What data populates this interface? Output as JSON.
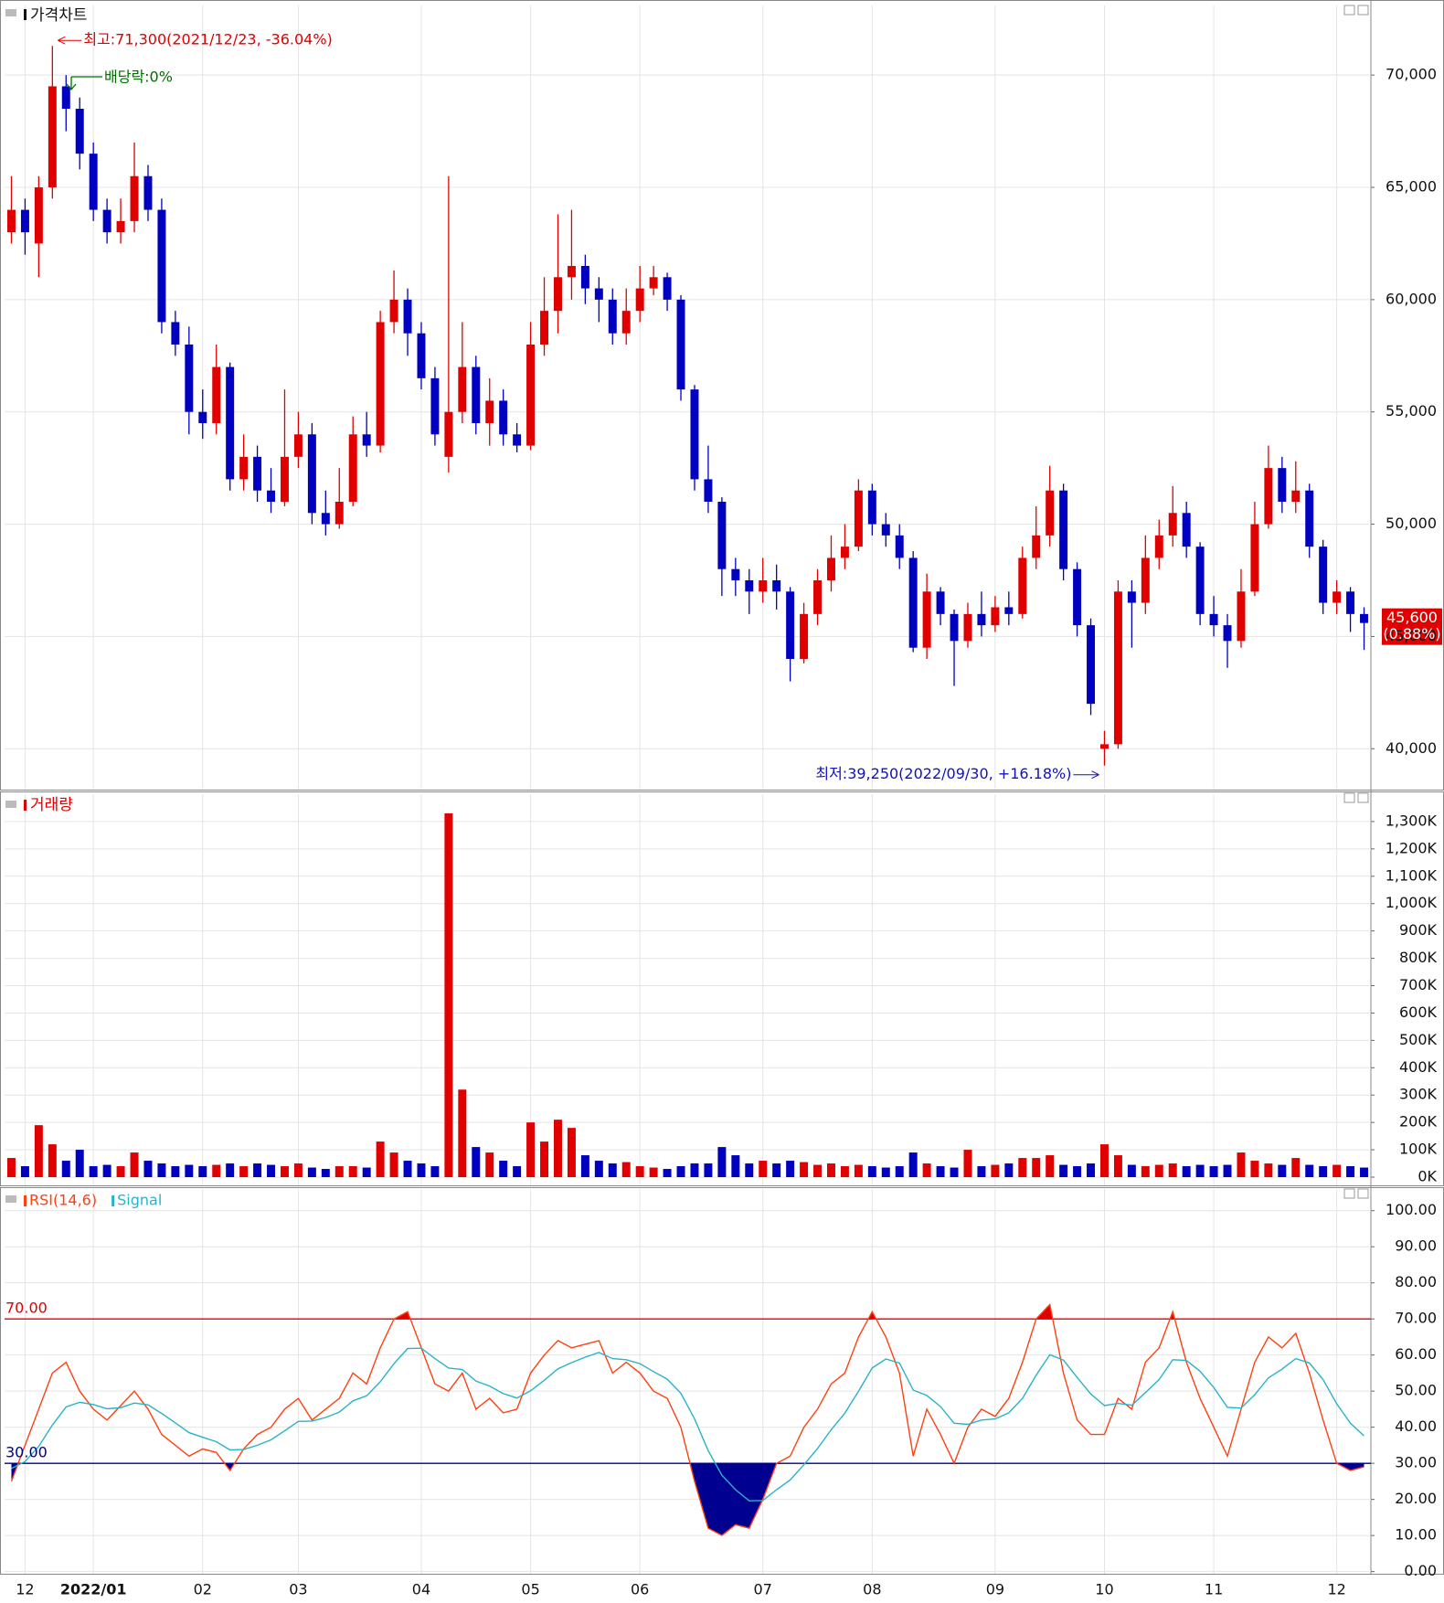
{
  "chart_data": [
    {
      "type": "candlestick",
      "title": "가격차트",
      "categories": [
        null,
        "12",
        null,
        null,
        null,
        null,
        "2022/01",
        null,
        null,
        null,
        null,
        null,
        null,
        null,
        "02",
        null,
        null,
        null,
        null,
        null,
        null,
        "03",
        null,
        null,
        null,
        null,
        null,
        null,
        null,
        null,
        "04",
        null,
        null,
        null,
        null,
        null,
        null,
        null,
        "05",
        null,
        null,
        null,
        null,
        null,
        null,
        null,
        "06",
        null,
        null,
        null,
        null,
        null,
        null,
        null,
        null,
        "07",
        null,
        null,
        null,
        null,
        null,
        null,
        null,
        "08",
        null,
        null,
        null,
        null,
        null,
        null,
        null,
        null,
        "09",
        null,
        null,
        null,
        null,
        null,
        null,
        null,
        "10",
        null,
        null,
        null,
        null,
        null,
        null,
        null,
        "11",
        null,
        null,
        null,
        null,
        null,
        null,
        null,
        null,
        "12",
        null,
        null
      ],
      "open": [
        63000,
        64000,
        62500,
        65000,
        69500,
        68500,
        66500,
        64000,
        63000,
        63500,
        65500,
        64000,
        59000,
        58000,
        55000,
        54500,
        57000,
        52000,
        53000,
        51500,
        51000,
        53000,
        54000,
        50500,
        50000,
        51000,
        54000,
        53500,
        59000,
        60000,
        58500,
        56500,
        53000,
        55000,
        57000,
        54500,
        55500,
        54000,
        53500,
        58000,
        59500,
        61000,
        61500,
        60500,
        60000,
        58500,
        59500,
        60500,
        61000,
        60000,
        56000,
        52000,
        51000,
        48000,
        47500,
        47000,
        47500,
        47000,
        44000,
        46000,
        47500,
        48500,
        49000,
        51500,
        50000,
        49500,
        48500,
        44500,
        47000,
        46000,
        44800,
        46000,
        45500,
        46300,
        46000,
        48500,
        49500,
        51500,
        48000,
        45500,
        40000,
        40200,
        47000,
        46500,
        48500,
        49500,
        50500,
        49000,
        46000,
        45500,
        44800,
        47000,
        50000,
        52500,
        51000,
        51500,
        49000,
        46500,
        47000,
        46000
      ],
      "high": [
        65500,
        64500,
        65500,
        71300,
        70000,
        69000,
        67000,
        64500,
        64500,
        67000,
        66000,
        64500,
        59500,
        58800,
        56000,
        58000,
        57200,
        54000,
        53500,
        52500,
        56000,
        55000,
        54500,
        51500,
        52500,
        54800,
        55000,
        59500,
        61300,
        60500,
        59000,
        57000,
        65500,
        59000,
        57500,
        56500,
        56000,
        54500,
        59000,
        61000,
        63800,
        64000,
        62000,
        61000,
        60500,
        60500,
        61500,
        61500,
        61200,
        60200,
        56200,
        53500,
        51200,
        48500,
        48000,
        48500,
        48200,
        47200,
        46500,
        48000,
        49500,
        50000,
        52000,
        51800,
        50500,
        50000,
        48800,
        47800,
        47200,
        46200,
        46500,
        47000,
        46800,
        47000,
        49000,
        50800,
        52600,
        51800,
        48300,
        45800,
        40800,
        47500,
        47500,
        49500,
        50200,
        51700,
        51000,
        49200,
        46800,
        46000,
        48000,
        51000,
        53500,
        53000,
        52800,
        51800,
        49300,
        47500,
        47200,
        46300
      ],
      "low": [
        62500,
        62000,
        61000,
        64500,
        67500,
        65800,
        63500,
        62500,
        62500,
        63000,
        63500,
        58500,
        57500,
        54000,
        53800,
        54000,
        51500,
        51500,
        51000,
        50500,
        50800,
        52500,
        50000,
        49500,
        49800,
        50800,
        53000,
        53200,
        58500,
        57500,
        56000,
        53500,
        52300,
        54500,
        54000,
        53500,
        53500,
        53200,
        53300,
        57500,
        58500,
        60000,
        59800,
        59000,
        58000,
        58000,
        59000,
        60200,
        59500,
        55500,
        51500,
        50500,
        46800,
        46800,
        46000,
        46500,
        46200,
        43000,
        43800,
        45500,
        47000,
        48000,
        48800,
        49500,
        49000,
        48000,
        44300,
        44000,
        45500,
        42800,
        44500,
        45000,
        45200,
        45500,
        45800,
        48000,
        49000,
        47500,
        45000,
        41500,
        39250,
        40000,
        44500,
        46000,
        48000,
        49000,
        48500,
        45500,
        45000,
        43600,
        44500,
        46800,
        49800,
        50500,
        50500,
        48500,
        46000,
        46000,
        45200,
        44400
      ],
      "close": [
        64000,
        63000,
        65000,
        69500,
        68500,
        66500,
        64000,
        63000,
        63500,
        65500,
        64000,
        59000,
        58000,
        55000,
        54500,
        57000,
        52000,
        53000,
        51500,
        51000,
        53000,
        54000,
        50500,
        50000,
        51000,
        54000,
        53500,
        59000,
        60000,
        58500,
        56500,
        54000,
        55000,
        57000,
        54500,
        55500,
        54000,
        53500,
        58000,
        59500,
        61000,
        61500,
        60500,
        60000,
        58500,
        59500,
        60500,
        61000,
        60000,
        56000,
        52000,
        51000,
        48000,
        47500,
        47000,
        47500,
        47000,
        44000,
        46000,
        47500,
        48500,
        49000,
        51500,
        50000,
        49500,
        48500,
        44500,
        47000,
        46000,
        44800,
        46000,
        45500,
        46300,
        46000,
        48500,
        49500,
        51500,
        48000,
        45500,
        42000,
        40200,
        47000,
        46500,
        48500,
        49500,
        50500,
        49000,
        46000,
        45500,
        44800,
        47000,
        50000,
        52500,
        51000,
        51500,
        49000,
        46500,
        47000,
        46000,
        45600
      ],
      "up_color": "#e00000",
      "down_color": "#0000c0",
      "ylim": [
        38220,
        73100
      ],
      "yticks": [
        {
          "value": 40000,
          "label": "40,000"
        },
        {
          "value": 45000,
          "label": "45,000"
        },
        {
          "value": 50000,
          "label": "50,000"
        },
        {
          "value": 55000,
          "label": "55,000"
        },
        {
          "value": 60000,
          "label": "60,000"
        },
        {
          "value": 65000,
          "label": "65,000"
        },
        {
          "value": 70000,
          "label": "70,000"
        }
      ],
      "grid": true,
      "high_note": "최고:71,300(2021/12/23, -36.04%)",
      "low_note": "최저:39,250(2022/09/30, +16.18%)",
      "dividend_note": "배당락:0%",
      "last": {
        "value": 45600,
        "label": "45,600",
        "change": "(0.88%)"
      }
    },
    {
      "type": "bar",
      "title": "거래량",
      "values": [
        70000,
        40000,
        190000,
        120000,
        60000,
        100000,
        40000,
        45000,
        40000,
        90000,
        60000,
        50000,
        40000,
        45000,
        40000,
        45000,
        50000,
        40000,
        50000,
        45000,
        40000,
        50000,
        35000,
        30000,
        40000,
        40000,
        35000,
        130000,
        90000,
        60000,
        50000,
        40000,
        1330000,
        320000,
        110000,
        90000,
        60000,
        40000,
        200000,
        130000,
        210000,
        180000,
        80000,
        60000,
        50000,
        55000,
        40000,
        35000,
        30000,
        40000,
        50000,
        50000,
        110000,
        80000,
        50000,
        60000,
        50000,
        60000,
        55000,
        45000,
        50000,
        40000,
        45000,
        40000,
        35000,
        40000,
        90000,
        50000,
        40000,
        35000,
        100000,
        40000,
        45000,
        50000,
        70000,
        70000,
        80000,
        45000,
        40000,
        50000,
        120000,
        80000,
        45000,
        40000,
        45000,
        50000,
        40000,
        45000,
        40000,
        45000,
        90000,
        60000,
        50000,
        45000,
        70000,
        45000,
        40000,
        45000,
        40000,
        35000
      ],
      "ylim": [
        -30000,
        1400000
      ],
      "yticks": [
        {
          "value": 0,
          "label": "0K"
        },
        {
          "value": 100000,
          "label": "100K"
        },
        {
          "value": 200000,
          "label": "200K"
        },
        {
          "value": 300000,
          "label": "300K"
        },
        {
          "value": 400000,
          "label": "400K"
        },
        {
          "value": 500000,
          "label": "500K"
        },
        {
          "value": 600000,
          "label": "600K"
        },
        {
          "value": 700000,
          "label": "700K"
        },
        {
          "value": 800000,
          "label": "800K"
        },
        {
          "value": 900000,
          "label": "900K"
        },
        {
          "value": 1000000,
          "label": "1,000K"
        },
        {
          "value": 1100000,
          "label": "1,100K"
        },
        {
          "value": 1200000,
          "label": "1,200K"
        },
        {
          "value": 1300000,
          "label": "1,300K"
        }
      ],
      "grid": true
    },
    {
      "type": "line",
      "series": [
        {
          "name": "RSI(14,6)",
          "color": "#ff4010",
          "values": [
            25,
            35,
            45,
            55,
            58,
            50,
            45,
            42,
            46,
            50,
            45,
            38,
            35,
            32,
            34,
            33,
            28,
            34,
            38,
            40,
            45,
            48,
            42,
            45,
            48,
            55,
            52,
            62,
            70,
            72,
            62,
            52,
            50,
            55,
            45,
            48,
            44,
            45,
            55,
            60,
            64,
            62,
            63,
            64,
            55,
            58,
            55,
            50,
            48,
            40,
            25,
            12,
            10,
            13,
            12,
            20,
            30,
            32,
            40,
            45,
            52,
            55,
            65,
            72,
            65,
            55,
            32,
            45,
            38,
            30,
            40,
            45,
            43,
            48,
            58,
            70,
            74,
            55,
            42,
            38,
            38,
            48,
            45,
            58,
            62,
            72,
            58,
            48,
            40,
            32,
            45,
            58,
            65,
            62,
            66,
            55,
            42,
            30,
            28,
            29
          ]
        },
        {
          "name": "Signal",
          "color": "#28b4c8",
          "values": [
            28.6,
            30.5,
            34.7,
            40.6,
            45.6,
            46.9,
            46.3,
            45.1,
            45.4,
            46.7,
            46.2,
            43.8,
            41.2,
            38.5,
            37.2,
            36.0,
            33.7,
            33.8,
            35.0,
            36.5,
            39.0,
            41.6,
            41.7,
            42.7,
            44.2,
            47.3,
            48.7,
            52.6,
            57.6,
            61.8,
            61.9,
            59.0,
            56.4,
            56.0,
            52.8,
            51.4,
            49.3,
            48.1,
            50.1,
            53.0,
            56.2,
            57.9,
            59.4,
            60.7,
            59.0,
            58.7,
            57.6,
            55.4,
            53.3,
            49.4,
            42.3,
            33.5,
            26.7,
            22.7,
            19.6,
            19.7,
            22.7,
            25.4,
            29.6,
            34.1,
            39.3,
            43.9,
            50.0,
            56.4,
            58.9,
            57.8,
            50.3,
            48.8,
            45.7,
            41.1,
            40.8,
            42.0,
            42.3,
            44.0,
            48.0,
            54.4,
            60.1,
            58.6,
            53.8,
            49.2,
            46.0,
            46.6,
            46.1,
            49.6,
            53.2,
            58.7,
            58.5,
            55.5,
            51.0,
            45.5,
            45.3,
            49.0,
            53.7,
            56.1,
            59.0,
            57.8,
            53.2,
            46.5,
            41.1,
            37.6
          ]
        }
      ],
      "levels": [
        {
          "value": 70,
          "label": "70.00",
          "color": "#e00000"
        },
        {
          "value": 30,
          "label": "30.00",
          "color": "#000090"
        }
      ],
      "ylim": [
        -0.6,
        106
      ],
      "yticks": [
        {
          "value": 0,
          "label": "0.00"
        },
        {
          "value": 10,
          "label": "10.00"
        },
        {
          "value": 20,
          "label": "20.00"
        },
        {
          "value": 30,
          "label": "30.00"
        },
        {
          "value": 40,
          "label": "40.00"
        },
        {
          "value": 50,
          "label": "50.00"
        },
        {
          "value": 60,
          "label": "60.00"
        },
        {
          "value": 70,
          "label": "70.00"
        },
        {
          "value": 80,
          "label": "80.00"
        },
        {
          "value": 90,
          "label": "90.00"
        },
        {
          "value": 100,
          "label": "100.00"
        }
      ],
      "grid": true
    }
  ]
}
